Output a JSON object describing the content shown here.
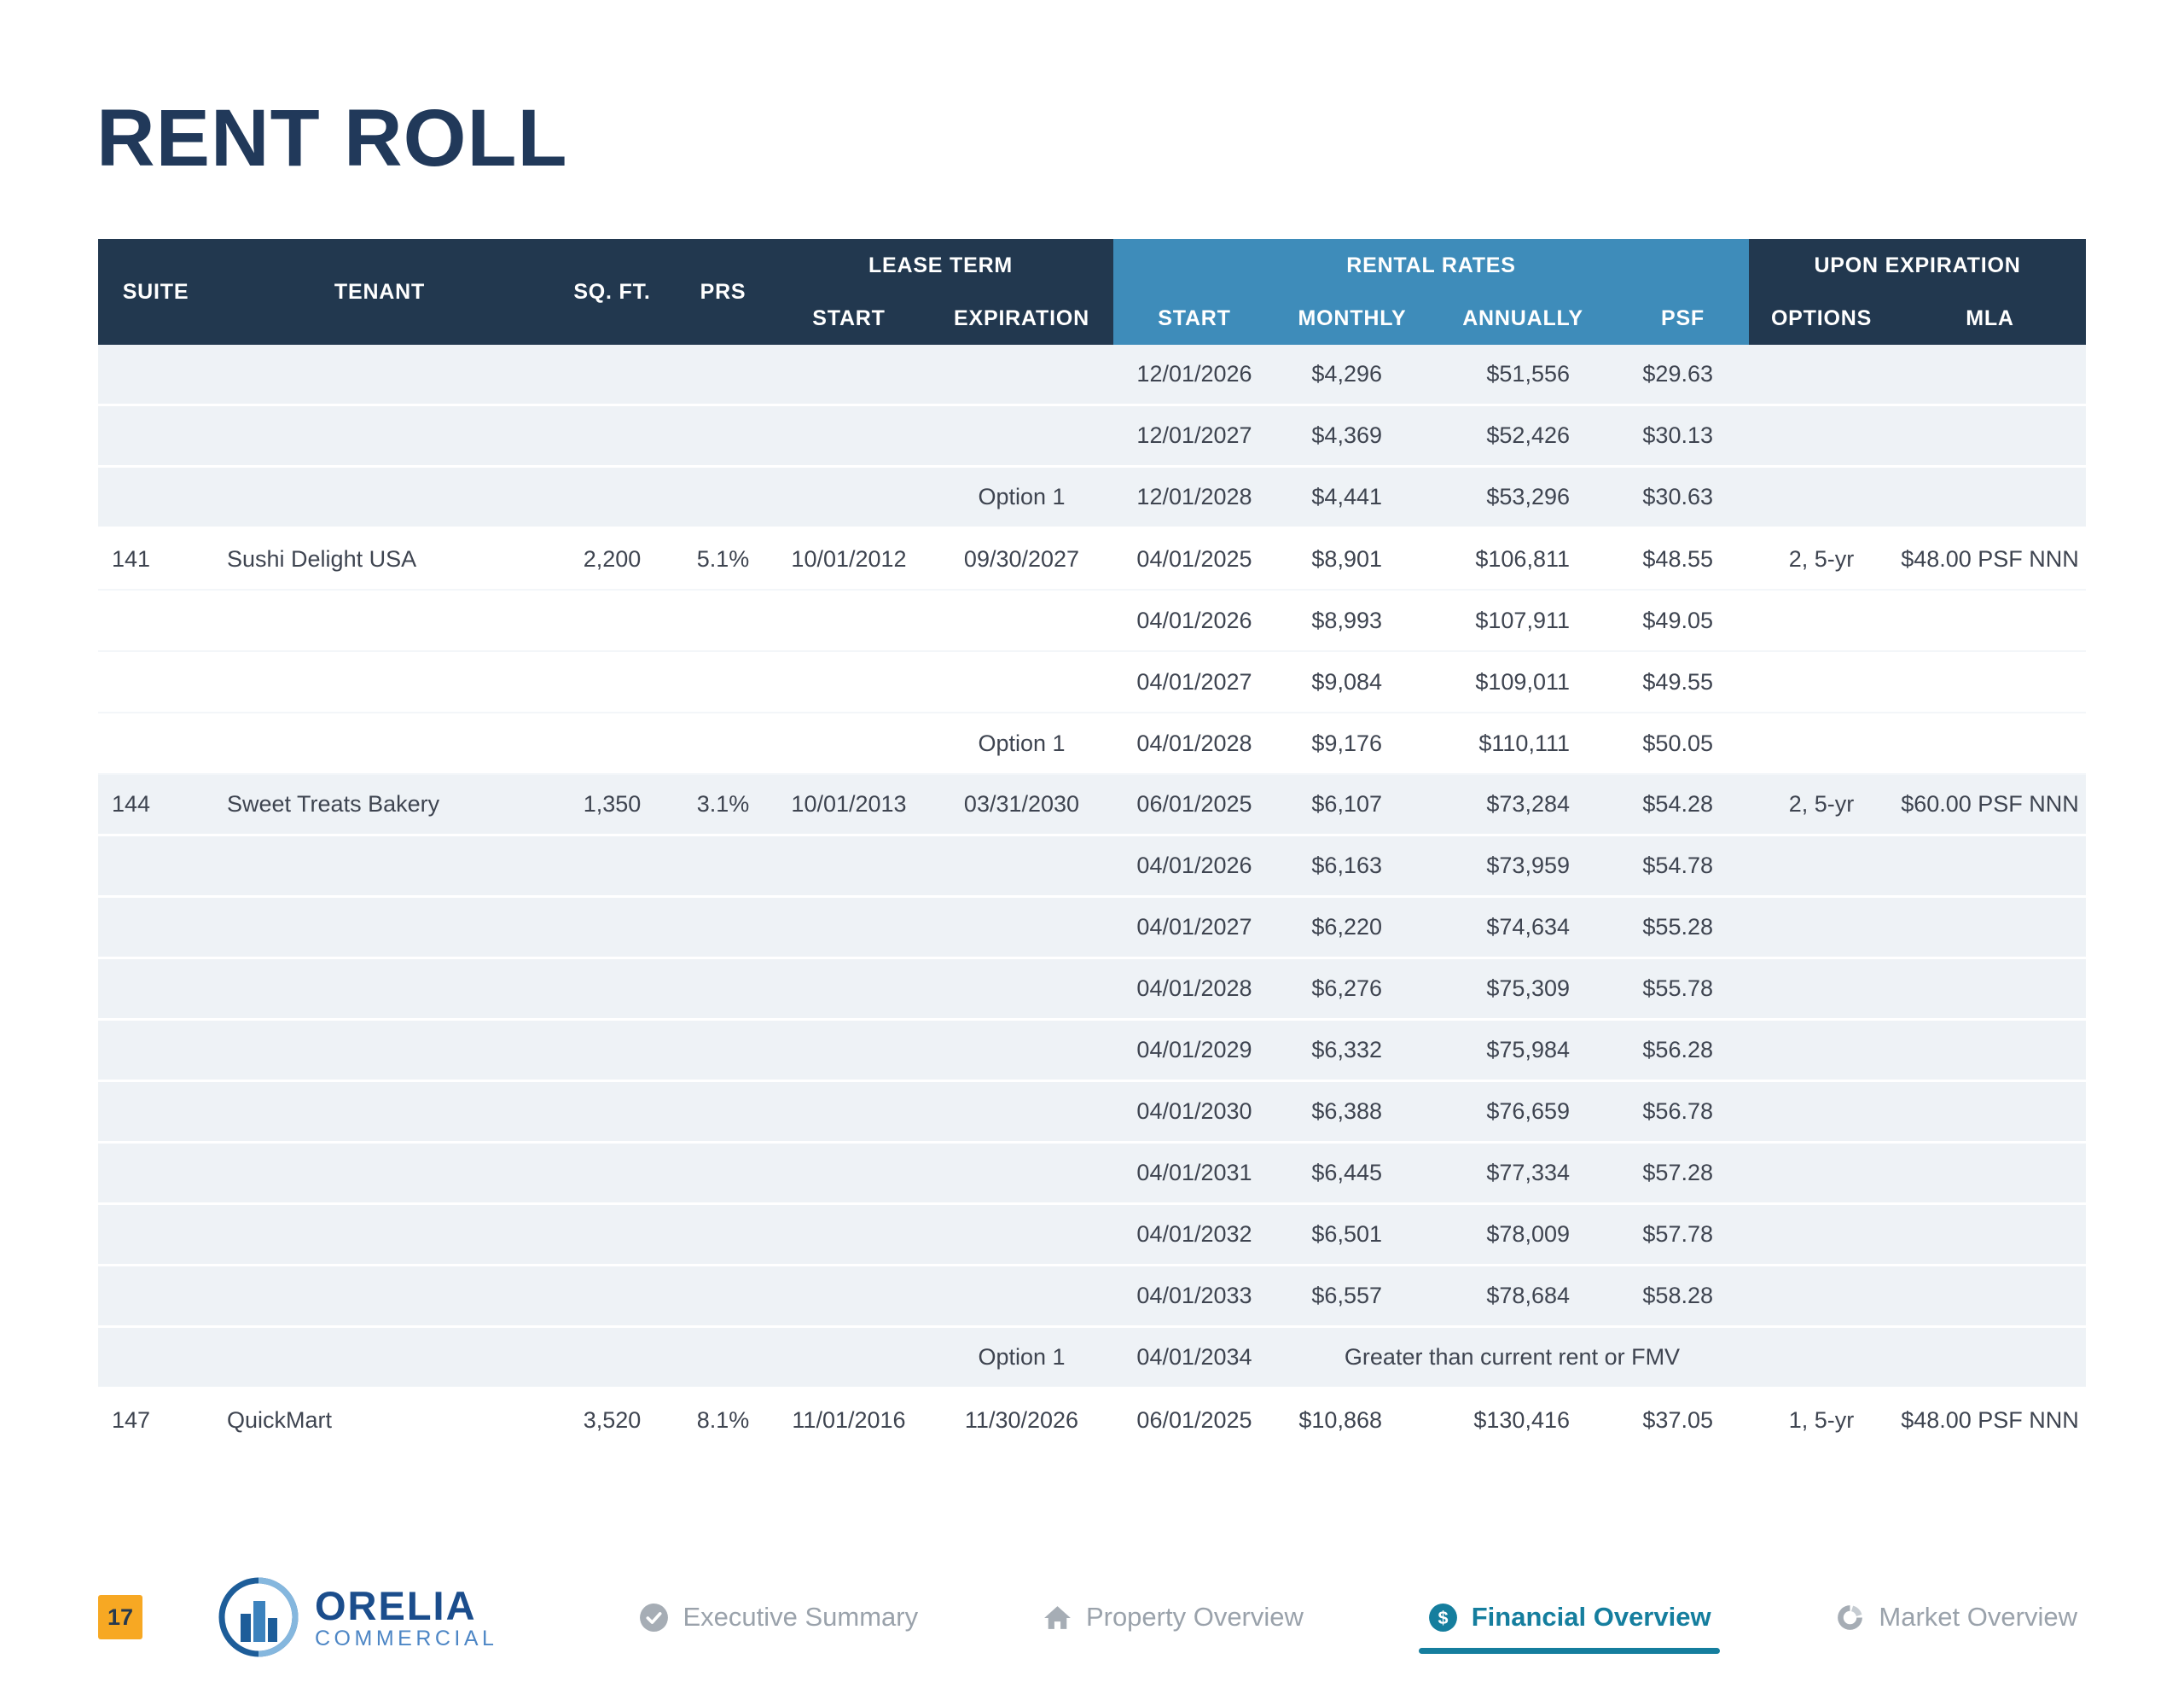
{
  "page": {
    "title": "RENT ROLL",
    "page_number": "17"
  },
  "colors": {
    "navy": "#22384f",
    "blue": "#3e8cba",
    "teal": "#157e9e",
    "orange": "#f7a823"
  },
  "table": {
    "headers": {
      "suite": "SUITE",
      "tenant": "TENANT",
      "sqft": "SQ. FT.",
      "prs": "PRS",
      "lease_term": "LEASE TERM",
      "rental_rates": "RENTAL RATES",
      "upon_expiration": "UPON EXPIRATION",
      "lease_start": "START",
      "lease_exp": "EXPIRATION",
      "rate_start": "START",
      "monthly": "MONTHLY",
      "annually": "ANNUALLY",
      "psf": "PSF",
      "options": "OPTIONS",
      "mla": "MLA"
    },
    "rows": [
      {
        "shade": "gray",
        "suite": "",
        "tenant": "",
        "sqft": "",
        "prs": "",
        "lease_start": "",
        "lease_exp": "",
        "rate_start": "12/01/2026",
        "monthly": "$4,296",
        "annually": "$51,556",
        "psf": "$29.63",
        "options": "",
        "mla": ""
      },
      {
        "shade": "gray",
        "suite": "",
        "tenant": "",
        "sqft": "",
        "prs": "",
        "lease_start": "",
        "lease_exp": "",
        "rate_start": "12/01/2027",
        "monthly": "$4,369",
        "annually": "$52,426",
        "psf": "$30.13",
        "options": "",
        "mla": ""
      },
      {
        "shade": "gray",
        "suite": "",
        "tenant": "",
        "sqft": "",
        "prs": "",
        "lease_start": "",
        "lease_exp": "Option 1",
        "rate_start": "12/01/2028",
        "monthly": "$4,441",
        "annually": "$53,296",
        "psf": "$30.63",
        "options": "",
        "mla": ""
      },
      {
        "shade": "white",
        "suite": "141",
        "tenant": "Sushi Delight USA",
        "sqft": "2,200",
        "prs": "5.1%",
        "lease_start": "10/01/2012",
        "lease_exp": "09/30/2027",
        "rate_start": "04/01/2025",
        "monthly": "$8,901",
        "annually": "$106,811",
        "psf": "$48.55",
        "options": "2, 5-yr",
        "mla": "$48.00 PSF NNN"
      },
      {
        "shade": "white",
        "suite": "",
        "tenant": "",
        "sqft": "",
        "prs": "",
        "lease_start": "",
        "lease_exp": "",
        "rate_start": "04/01/2026",
        "monthly": "$8,993",
        "annually": "$107,911",
        "psf": "$49.05",
        "options": "",
        "mla": ""
      },
      {
        "shade": "white",
        "suite": "",
        "tenant": "",
        "sqft": "",
        "prs": "",
        "lease_start": "",
        "lease_exp": "",
        "rate_start": "04/01/2027",
        "monthly": "$9,084",
        "annually": "$109,011",
        "psf": "$49.55",
        "options": "",
        "mla": ""
      },
      {
        "shade": "white",
        "suite": "",
        "tenant": "",
        "sqft": "",
        "prs": "",
        "lease_start": "",
        "lease_exp": "Option 1",
        "rate_start": "04/01/2028",
        "monthly": "$9,176",
        "annually": "$110,111",
        "psf": "$50.05",
        "options": "",
        "mla": ""
      },
      {
        "shade": "gray",
        "suite": "144",
        "tenant": "Sweet Treats Bakery",
        "sqft": "1,350",
        "prs": "3.1%",
        "lease_start": "10/01/2013",
        "lease_exp": "03/31/2030",
        "rate_start": "06/01/2025",
        "monthly": "$6,107",
        "annually": "$73,284",
        "psf": "$54.28",
        "options": "2, 5-yr",
        "mla": "$60.00 PSF NNN"
      },
      {
        "shade": "gray",
        "suite": "",
        "tenant": "",
        "sqft": "",
        "prs": "",
        "lease_start": "",
        "lease_exp": "",
        "rate_start": "04/01/2026",
        "monthly": "$6,163",
        "annually": "$73,959",
        "psf": "$54.78",
        "options": "",
        "mla": ""
      },
      {
        "shade": "gray",
        "suite": "",
        "tenant": "",
        "sqft": "",
        "prs": "",
        "lease_start": "",
        "lease_exp": "",
        "rate_start": "04/01/2027",
        "monthly": "$6,220",
        "annually": "$74,634",
        "psf": "$55.28",
        "options": "",
        "mla": ""
      },
      {
        "shade": "gray",
        "suite": "",
        "tenant": "",
        "sqft": "",
        "prs": "",
        "lease_start": "",
        "lease_exp": "",
        "rate_start": "04/01/2028",
        "monthly": "$6,276",
        "annually": "$75,309",
        "psf": "$55.78",
        "options": "",
        "mla": ""
      },
      {
        "shade": "gray",
        "suite": "",
        "tenant": "",
        "sqft": "",
        "prs": "",
        "lease_start": "",
        "lease_exp": "",
        "rate_start": "04/01/2029",
        "monthly": "$6,332",
        "annually": "$75,984",
        "psf": "$56.28",
        "options": "",
        "mla": ""
      },
      {
        "shade": "gray",
        "suite": "",
        "tenant": "",
        "sqft": "",
        "prs": "",
        "lease_start": "",
        "lease_exp": "",
        "rate_start": "04/01/2030",
        "monthly": "$6,388",
        "annually": "$76,659",
        "psf": "$56.78",
        "options": "",
        "mla": ""
      },
      {
        "shade": "gray",
        "suite": "",
        "tenant": "",
        "sqft": "",
        "prs": "",
        "lease_start": "",
        "lease_exp": "",
        "rate_start": "04/01/2031",
        "monthly": "$6,445",
        "annually": "$77,334",
        "psf": "$57.28",
        "options": "",
        "mla": ""
      },
      {
        "shade": "gray",
        "suite": "",
        "tenant": "",
        "sqft": "",
        "prs": "",
        "lease_start": "",
        "lease_exp": "",
        "rate_start": "04/01/2032",
        "monthly": "$6,501",
        "annually": "$78,009",
        "psf": "$57.78",
        "options": "",
        "mla": ""
      },
      {
        "shade": "gray",
        "suite": "",
        "tenant": "",
        "sqft": "",
        "prs": "",
        "lease_start": "",
        "lease_exp": "",
        "rate_start": "04/01/2033",
        "monthly": "$6,557",
        "annually": "$78,684",
        "psf": "$58.28",
        "options": "",
        "mla": ""
      },
      {
        "shade": "gray",
        "suite": "",
        "tenant": "",
        "sqft": "",
        "prs": "",
        "lease_start": "",
        "lease_exp": "Option 1",
        "rate_start": "04/01/2034",
        "note": "Greater than current rent or FMV",
        "options": "",
        "mla": ""
      },
      {
        "shade": "white",
        "suite": "147",
        "tenant": "QuickMart",
        "sqft": "3,520",
        "prs": "8.1%",
        "lease_start": "11/01/2016",
        "lease_exp": "11/30/2026",
        "rate_start": "06/01/2025",
        "monthly": "$10,868",
        "annually": "$130,416",
        "psf": "$37.05",
        "options": "1, 5-yr",
        "mla": "$48.00 PSF NNN"
      }
    ]
  },
  "footer": {
    "logo": {
      "primary": "ORELIA",
      "secondary": "COMMERCIAL"
    },
    "nav": [
      {
        "label": "Executive Summary",
        "icon": "check-circle",
        "active": false
      },
      {
        "label": "Property Overview",
        "icon": "home",
        "active": false
      },
      {
        "label": "Financial Overview",
        "icon": "dollar-circle",
        "active": true
      },
      {
        "label": "Market Overview",
        "icon": "pie-chart",
        "active": false
      }
    ]
  }
}
